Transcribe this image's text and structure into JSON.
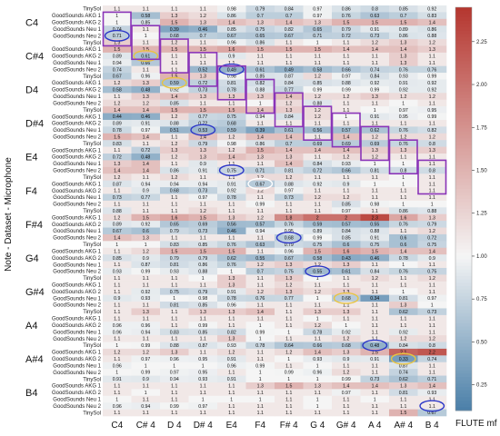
{
  "chart_data": {
    "type": "heatmap",
    "ylabel": "Note - Dataset - Microphone",
    "xlabel": "FLUTE mf",
    "columns": [
      "C4",
      "C# 4",
      "D 4",
      "D# 4",
      "E4",
      "F4",
      "F# 4",
      "G 4",
      "G# 4",
      "A 4",
      "A# 4",
      "B 4"
    ],
    "notes": [
      "C4",
      "C#4",
      "D4",
      "D#4",
      "E4",
      "F4",
      "F#4",
      "G4",
      "G#4",
      "A4",
      "A#4",
      "B4"
    ],
    "row_labels": [
      "TinySol",
      "GoodSounds AKG 1",
      "GoodSounds AKG 2",
      "GoodSounds Neu 1",
      "GoodSounds Neu 2"
    ],
    "colorbar": {
      "min": 0.1,
      "max": 2.45,
      "ticks": [
        0.25,
        0.5,
        0.75,
        1.0,
        1.25,
        1.5,
        1.75,
        2.0,
        2.25
      ],
      "tick_labels": [
        "0.25",
        "0.50",
        "0.75",
        "1.00",
        "1.25",
        "1.50",
        "1.75",
        "2.00",
        "2.25"
      ],
      "colors": {
        "low": "#4a7fa8",
        "mid": "#f5f5f5",
        "high": "#b5362f"
      }
    },
    "highlight_colors": {
      "blue": "#2a35c8",
      "yellow": "#e8c440",
      "purple": "#8a34b8"
    },
    "rows": [
      [
        1.1,
        1.1,
        1.1,
        1.1,
        0.98,
        0.79,
        0.84,
        0.97,
        0.86,
        0.8,
        0.85,
        0.92
      ],
      [
        1,
        0.58,
        1.3,
        1.2,
        0.86,
        0.7,
        0.7,
        0.97,
        0.76,
        0.63,
        0.7,
        0.83
      ],
      [
        1,
        0.85,
        1.5,
        1.3,
        1.4,
        1.3,
        1.4,
        1.3,
        1.5,
        1.5,
        1.5,
        1.4
      ],
      [
        0.74,
        1.1,
        0.39,
        0.46,
        0.85,
        0.75,
        0.82,
        0.65,
        0.79,
        0.91,
        0.89,
        0.86
      ],
      [
        0.71,
        1,
        0.68,
        0.7,
        0.67,
        0.65,
        0.67,
        0.71,
        0.72,
        0.73,
        0.86,
        0.88
      ],
      [
        1.3,
        1.1,
        1.2,
        1.1,
        0.96,
        0.86,
        1.1,
        1,
        1.1,
        1.2,
        1.3,
        1.2
      ],
      [
        1.5,
        1.5,
        1.5,
        1.5,
        1.6,
        1.5,
        1.5,
        1.5,
        1.4,
        1.4,
        1.4,
        1.3
      ],
      [
        0.89,
        0.61,
        1.1,
        1.1,
        0.9,
        1.1,
        1.1,
        1.1,
        1.1,
        1.1,
        1.3,
        1.1
      ],
      [
        0.94,
        0.66,
        1.1,
        1.1,
        1.1,
        1.1,
        1.1,
        1.1,
        1.1,
        1.1,
        1.3,
        1.1
      ],
      [
        0.74,
        1.1,
        1.1,
        0.52,
        0.49,
        0.61,
        0.49,
        0.58,
        0.66,
        0.74,
        0.76,
        0.76
      ],
      [
        0.67,
        0.96,
        1.5,
        1.3,
        0.98,
        0.85,
        0.87,
        1.2,
        0.97,
        0.84,
        0.93,
        0.99
      ],
      [
        1.2,
        1.3,
        0.59,
        0.72,
        0.81,
        0.82,
        0.84,
        0.85,
        0.88,
        0.92,
        0.91,
        0.92
      ],
      [
        0.58,
        0.48,
        0.92,
        0.73,
        0.78,
        0.88,
        0.77,
        0.99,
        0.99,
        0.99,
        0.92,
        0.92
      ],
      [
        1.1,
        1.3,
        1.4,
        1.3,
        1.3,
        1.3,
        1.4,
        1.2,
        1.2,
        1.3,
        1.2,
        1.2
      ],
      [
        1.2,
        1.2,
        0.85,
        1.1,
        1.1,
        1,
        1.2,
        0.88,
        1.1,
        1.1,
        1,
        1.1
      ],
      [
        1.4,
        1.4,
        1.5,
        1.5,
        1.5,
        1.4,
        1.3,
        1.2,
        1.1,
        1,
        0.97,
        0.95
      ],
      [
        0.44,
        0.46,
        1.2,
        0.77,
        0.75,
        0.94,
        0.84,
        1.2,
        1,
        0.91,
        0.95,
        0.99
      ],
      [
        0.89,
        0.91,
        0.88,
        0.72,
        0.68,
        1.1,
        1.1,
        1.1,
        1.1,
        1.1,
        1.1,
        1.1
      ],
      [
        0.78,
        0.97,
        0.51,
        0.53,
        0.59,
        0.39,
        0.61,
        0.56,
        0.57,
        0.62,
        0.76,
        0.82
      ],
      [
        1.5,
        1.4,
        1.1,
        1.4,
        1.2,
        1.4,
        1.4,
        1.1,
        1.4,
        1.2,
        1.2,
        1.2
      ],
      [
        0.83,
        1.1,
        1.2,
        0.79,
        0.98,
        0.86,
        0.7,
        0.69,
        0.69,
        0.69,
        0.76,
        0.8
      ],
      [
        1.1,
        0.72,
        1.3,
        1.3,
        1.2,
        1.5,
        1.4,
        1.4,
        1.4,
        1.3,
        1.3,
        1.3
      ],
      [
        0.72,
        0.48,
        1.2,
        1.3,
        1.4,
        1.3,
        1.3,
        1.1,
        1.2,
        1.2,
        1.1,
        1.1
      ],
      [
        1.3,
        1.4,
        1.1,
        0.9,
        1.1,
        1.1,
        1.4,
        0.84,
        0.93,
        1,
        1,
        1.1
      ],
      [
        1.4,
        1.4,
        0.86,
        0.91,
        0.75,
        0.71,
        0.81,
        0.72,
        0.66,
        0.81,
        0.8,
        0.8
      ],
      [
        1.2,
        1.1,
        1.2,
        1.1,
        1.1,
        1.2,
        1.2,
        1.1,
        1.1,
        1.1,
        1,
        1.1
      ],
      [
        0.87,
        0.94,
        0.94,
        0.94,
        0.91,
        0.67,
        0.88,
        0.92,
        0.9,
        1,
        1,
        1.1
      ],
      [
        1.1,
        0.9,
        0.68,
        0.73,
        0.92,
        1.2,
        0.97,
        1.1,
        1.1,
        1.1,
        1.1,
        1.1
      ],
      [
        0.73,
        0.77,
        1.1,
        0.97,
        0.78,
        1.1,
        0.73,
        1.2,
        1.2,
        1.1,
        1.1,
        1.1
      ],
      [
        1.1,
        1.1,
        1.1,
        1.1,
        1.1,
        0.99,
        1.1,
        1.1,
        0.85,
        0.98,
        1,
        1
      ],
      [
        0.88,
        1.1,
        1.1,
        1.2,
        1.1,
        1.1,
        1.1,
        1.1,
        0.97,
        1.1,
        0.86,
        0.88
      ],
      [
        1.2,
        1.5,
        1.6,
        1.5,
        1.3,
        1.2,
        1.8,
        2,
        2,
        2.3,
        1.6,
        1.3
      ],
      [
        0.89,
        0.92,
        0.65,
        0.69,
        0.56,
        0.57,
        0.76,
        0.59,
        0.57,
        0.55,
        0.76,
        0.79
      ],
      [
        0.67,
        0.6,
        0.79,
        0.73,
        0.46,
        0.94,
        0.95,
        0.89,
        0.84,
        0.88,
        1.1,
        1.2
      ],
      [
        1.4,
        1.3,
        1.1,
        1.1,
        1.1,
        1.1,
        0.68,
        0.99,
        0.85,
        0.91,
        0.6,
        0.72
      ],
      [
        1,
        1,
        0.83,
        0.85,
        0.76,
        0.63,
        0.79,
        0.75,
        0.6,
        0.75,
        0.6,
        0.75
      ],
      [
        1.1,
        1.2,
        1.5,
        1.5,
        1.5,
        1.1,
        0.96,
        1.5,
        1.6,
        1.5,
        1.4,
        1.4
      ],
      [
        0.85,
        0.9,
        0.79,
        0.79,
        0.62,
        0.55,
        0.67,
        0.58,
        0.43,
        0.46,
        0.78,
        0.9
      ],
      [
        1.1,
        0.87,
        0.81,
        0.86,
        0.76,
        1.2,
        1.3,
        1.2,
        1.3,
        1.1,
        1,
        1.1
      ],
      [
        0.93,
        0.99,
        0.93,
        0.88,
        1,
        0.7,
        0.75,
        0.55,
        0.61,
        0.84,
        0.76,
        0.75
      ],
      [
        1.1,
        1.1,
        1.1,
        1,
        1.3,
        1.1,
        1.3,
        1,
        1.1,
        1.2,
        1.1,
        1.2
      ],
      [
        1.1,
        1.1,
        1.1,
        1.1,
        1.3,
        1.1,
        1.2,
        1.1,
        1.1,
        1.1,
        1.1,
        1.1
      ],
      [
        1.1,
        0.92,
        0.75,
        0.79,
        0.91,
        1.2,
        1.3,
        1.2,
        1.3,
        1.1,
        1,
        1.1
      ],
      [
        0.9,
        0.93,
        1,
        0.98,
        0.78,
        0.76,
        0.77,
        1,
        0.68,
        0.34,
        0.81,
        0.97
      ],
      [
        1.1,
        1.1,
        0.81,
        0.85,
        0.96,
        1.1,
        1.1,
        1.1,
        1.1,
        1.1,
        1.3,
        1
      ],
      [
        1.1,
        1.3,
        1.1,
        1.3,
        1.3,
        1.4,
        1.1,
        1.3,
        1.3,
        1.1,
        0.62,
        0.73
      ],
      [
        1.1,
        1.1,
        1.1,
        1.1,
        1.1,
        1.1,
        1.1,
        1,
        1.1,
        1.1,
        1.1,
        1.1
      ],
      [
        0.96,
        0.96,
        1.1,
        0.99,
        1.1,
        1,
        1.1,
        1.2,
        1,
        1.1,
        1.1,
        1.1
      ],
      [
        0.96,
        0.94,
        0.83,
        0.85,
        0.82,
        0.99,
        1,
        0.78,
        0.92,
        1.1,
        0.92,
        1.1
      ],
      [
        1.1,
        1.1,
        1.1,
        1.1,
        1.3,
        1,
        1.1,
        1.1,
        1.2,
        1.1,
        1.2,
        1.2
      ],
      [
        1,
        0.99,
        0.88,
        0.87,
        0.93,
        0.78,
        0.64,
        0.66,
        0.68,
        0.48,
        0.84,
        0.8
      ],
      [
        1.2,
        1.2,
        1.3,
        1.1,
        1.2,
        1.1,
        1.2,
        1.4,
        1.3,
        1.5,
        2.1,
        2.2
      ],
      [
        1.1,
        0.97,
        0.96,
        0.95,
        0.91,
        1.1,
        1,
        0.93,
        0.9,
        0.91,
        0.33,
        0.74
      ],
      [
        0.96,
        1,
        1,
        1,
        0.96,
        0.99,
        1.1,
        1,
        1.1,
        1.1,
        0.87,
        1.1
      ],
      [
        1,
        0.99,
        0.97,
        0.95,
        1.1,
        1,
        0.99,
        0.96,
        1.2,
        1.1,
        0.74,
        1.1
      ],
      [
        0.91,
        0.9,
        0.94,
        0.93,
        0.91,
        1,
        1,
        1,
        0.99,
        0.73,
        0.62,
        0.71
      ],
      [
        1.1,
        1.1,
        1.1,
        1.1,
        1.1,
        1.3,
        1.5,
        1.3,
        1.4,
        1.4,
        1.3,
        1.4
      ],
      [
        1.1,
        1,
        1.1,
        1.1,
        1.1,
        1.1,
        1.1,
        1.1,
        0.97,
        1.1,
        0.81,
        0.93
      ],
      [
        1,
        1.1,
        1.1,
        1,
        1,
        1,
        1.1,
        1,
        1.1,
        1,
        1.1,
        1.1
      ],
      [
        0.96,
        0.94,
        0.99,
        0.97,
        1.1,
        1.1,
        1.1,
        1,
        1.1,
        1.1,
        1.1,
        1.1
      ],
      [
        1.1,
        1.1,
        1.1,
        1.1,
        1.1,
        1.1,
        1.1,
        1.1,
        1.1,
        1.1,
        1.5,
        0.67
      ]
    ]
  },
  "annotations": {
    "blue_ellipses": [
      [
        4,
        0
      ],
      [
        9,
        4
      ],
      [
        18,
        3
      ],
      [
        24,
        4
      ],
      [
        34,
        6
      ],
      [
        39,
        7
      ],
      [
        50,
        9
      ],
      [
        59,
        11
      ]
    ],
    "yellow_ellipses": [
      [
        7,
        1
      ],
      [
        11,
        2
      ],
      [
        43,
        8
      ],
      [
        52,
        10
      ]
    ],
    "purple_steps": [
      [
        0,
        1
      ],
      [
        1,
        3
      ],
      [
        2,
        5
      ],
      [
        3,
        7
      ],
      [
        4,
        9
      ],
      [
        5,
        11
      ],
      [
        6,
        13
      ],
      [
        7,
        15
      ],
      [
        8,
        16
      ],
      [
        9,
        18
      ],
      [
        10,
        20
      ],
      [
        11,
        23
      ]
    ],
    "white_ellipses": [
      [
        26,
        5
      ]
    ]
  }
}
